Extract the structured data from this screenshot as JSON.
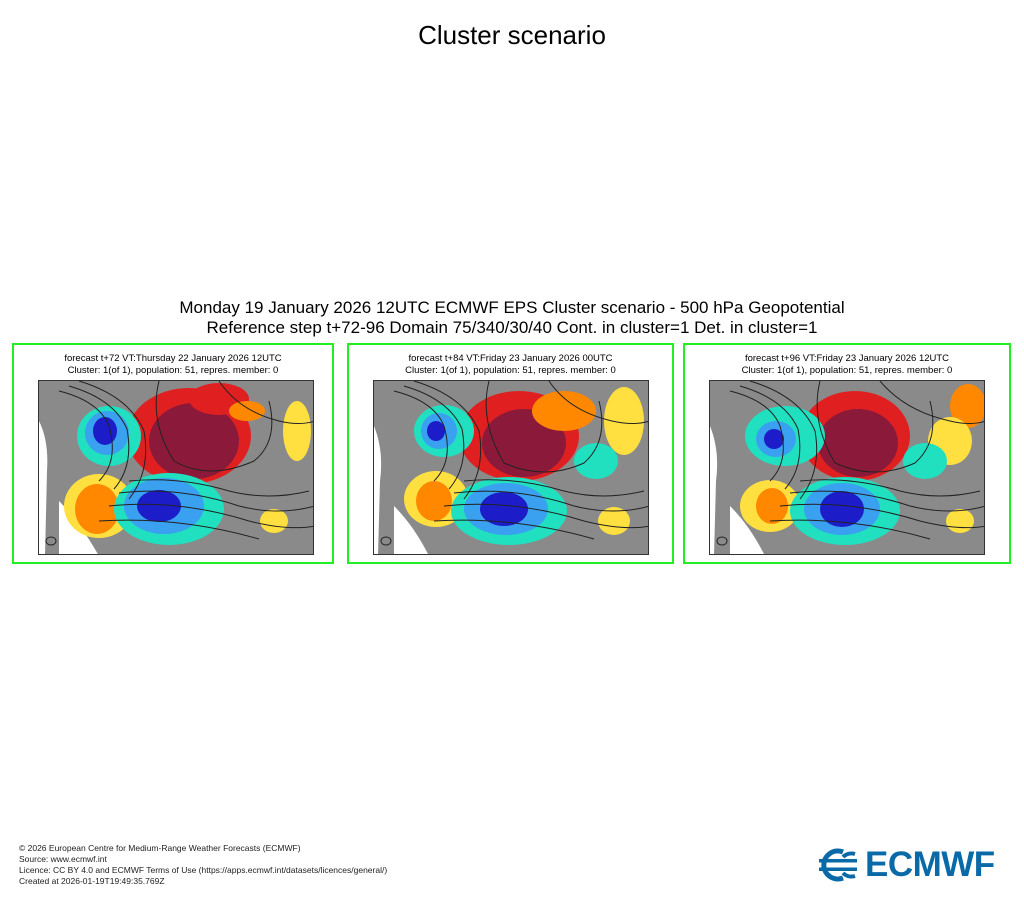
{
  "page": {
    "title": "Cluster scenario"
  },
  "header": {
    "line1": "Monday 19 January 2026 12UTC ECMWF EPS Cluster scenario - 500 hPa Geopotential",
    "line2": "Reference step t+72-96 Domain 75/340/30/40 Cont. in cluster=1 Det. in cluster=1"
  },
  "panels": [
    {
      "title": "forecast t+72 VT:Thursday 22 January 2026 12UTC",
      "subtitle": "Cluster: 1(of 1), population: 51, repres. member: 0"
    },
    {
      "title": "forecast t+84 VT:Friday 23 January 2026 00UTC",
      "subtitle": "Cluster: 1(of 1), population: 51, repres. member: 0"
    },
    {
      "title": "forecast t+96 VT:Friday 23 January 2026 12UTC",
      "subtitle": "Cluster: 1(of 1), population: 51, repres. member: 0"
    }
  ],
  "colors": {
    "panel_border": "#22ee22",
    "positive_anomaly_strong": "#8b1a3a",
    "positive_anomaly": "#e02020",
    "positive_anomaly_weak": "#ffe040",
    "negative_anomaly_strong": "#1c1cc8",
    "negative_anomaly": "#3aa0f0",
    "negative_anomaly_weak": "#20e0c0",
    "neutral": "#8a8a8a",
    "logo": "#0a6aa8"
  },
  "footer": {
    "copyright": "© 2026 European Centre for Medium-Range Weather Forecasts (ECMWF)",
    "source": "Source: www.ecmwf.int",
    "licence": "Licence: CC BY 4.0 and ECMWF Terms of Use (https://apps.ecmwf.int/datasets/licences/general/)",
    "created": "Created at 2026-01-19T19:49:35.769Z"
  },
  "logo": {
    "text": "ECMWF",
    "icon": "ecmwf-logo-icon"
  }
}
